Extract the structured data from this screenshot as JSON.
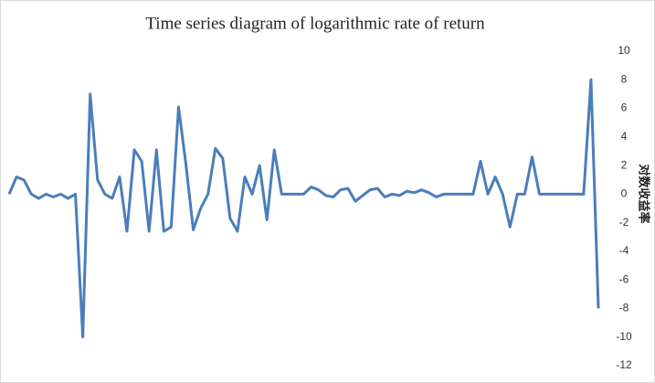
{
  "chart_data": {
    "type": "line",
    "title": "Time series diagram of logarithmic rate of return",
    "y_label": "对数收益率",
    "values": [
      0,
      1.2,
      1.0,
      0,
      -0.3,
      0,
      -0.2,
      0,
      -0.3,
      0,
      -10,
      7,
      1,
      0,
      -0.3,
      1.2,
      -2.6,
      3.1,
      2.3,
      -2.6,
      3.1,
      -2.6,
      -2.3,
      6.1,
      2.1,
      -2.5,
      -1,
      0,
      3.2,
      2.5,
      -1.7,
      -2.6,
      1.2,
      0,
      2,
      -1.8,
      3.1,
      0,
      0,
      0,
      0,
      0.5,
      0.3,
      -0.1,
      -0.2,
      0.3,
      0.4,
      -0.5,
      -0.1,
      0.3,
      0.4,
      -0.2,
      0,
      -0.1,
      0.2,
      0.1,
      0.3,
      0.1,
      -0.2,
      0,
      0,
      0,
      0,
      0,
      2.3,
      0,
      1.2,
      0,
      -2.3,
      0,
      0,
      2.6,
      0,
      0,
      0,
      0,
      0,
      0,
      0,
      8,
      -8
    ],
    "color": "#4a7ebb",
    "ylim": [
      -12,
      10
    ],
    "yticks": [
      -12,
      -10,
      -8,
      -6,
      -4,
      -2,
      0,
      2,
      4,
      6,
      8,
      10
    ],
    "grid": false
  }
}
